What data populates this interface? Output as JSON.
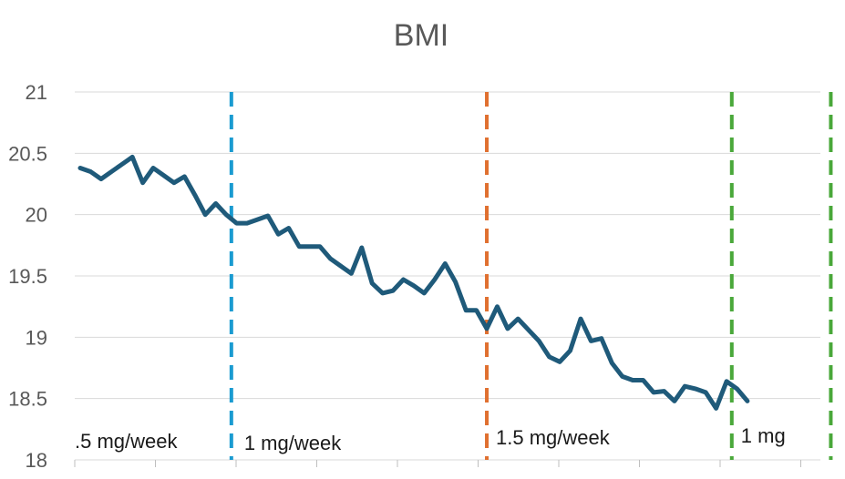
{
  "chart_data": {
    "type": "line",
    "title": "BMI",
    "xlabel": "",
    "ylabel": "",
    "ylim": [
      18,
      21
    ],
    "yticks": [
      "18",
      "18.5",
      "19",
      "19.5",
      "20",
      "20.5",
      "21"
    ],
    "grid": true,
    "legend": "none",
    "x_count": 72,
    "series": [
      {
        "color": "#1f5a7a",
        "values": [
          20.38,
          20.35,
          20.29,
          20.35,
          20.41,
          20.47,
          20.26,
          20.38,
          20.32,
          20.26,
          20.31,
          20.16,
          20.0,
          20.09,
          20.0,
          19.93,
          19.93,
          19.96,
          19.99,
          19.84,
          19.89,
          19.74,
          19.74,
          19.74,
          19.64,
          19.58,
          19.52,
          19.73,
          19.44,
          19.36,
          19.38,
          19.47,
          19.42,
          19.36,
          19.47,
          19.6,
          19.45,
          19.22,
          19.22,
          19.07,
          19.25,
          19.07,
          19.15,
          19.06,
          18.97,
          18.84,
          18.8,
          18.89,
          19.15,
          18.97,
          18.99,
          18.79,
          18.68,
          18.65,
          18.65,
          18.55,
          18.56,
          18.48,
          18.6,
          18.58,
          18.55,
          18.42,
          18.64,
          18.58,
          18.48
        ]
      }
    ],
    "markers": [
      {
        "x": 14.5,
        "color": "#1a9bd1",
        "label": ".5 mg/week",
        "label_side": "left"
      },
      {
        "x": 39.0,
        "color": "#e07030",
        "label": "1 mg/week",
        "label_side": "left"
      },
      {
        "x": 62.5,
        "color": "#4aa83a",
        "label": "1.5 mg/week",
        "label_side": "left"
      },
      {
        "x": 72.0,
        "color": "#4aa83a",
        "label": "1 mg",
        "label_side": "right"
      }
    ]
  }
}
